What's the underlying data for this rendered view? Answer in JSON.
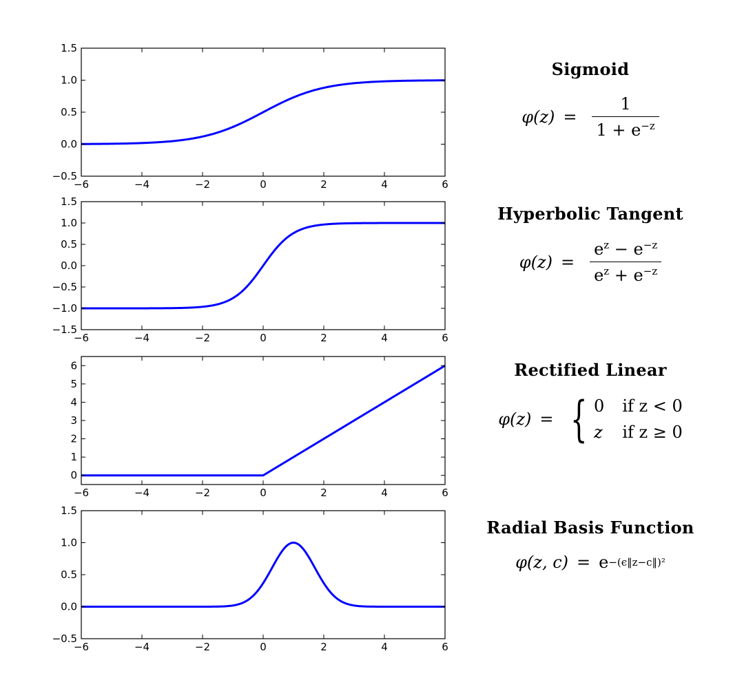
{
  "chart_data": [
    {
      "type": "line",
      "title": "Sigmoid",
      "formula": {
        "lhs": "φ(z)",
        "eq": "=",
        "numerator": "1",
        "denominator": "1 + e",
        "denominator_exp": "−z"
      },
      "function": "sigmoid",
      "xlim": [
        -6,
        6
      ],
      "ylim": [
        -0.5,
        1.5
      ],
      "xticks": [
        "−6",
        "−4",
        "−2",
        "0",
        "2",
        "4",
        "6"
      ],
      "xtick_values": [
        -6,
        -4,
        -2,
        0,
        2,
        4,
        6
      ],
      "yticks": [
        "−0.5",
        "0.0",
        "0.5",
        "1.0",
        "1.5"
      ],
      "ytick_values": [
        -0.5,
        0,
        0.5,
        1,
        1.5
      ],
      "x": [
        -6,
        -4,
        -2,
        -1,
        0,
        1,
        2,
        4,
        6
      ],
      "y": [
        0.0025,
        0.018,
        0.119,
        0.269,
        0.5,
        0.731,
        0.881,
        0.982,
        0.9975
      ],
      "color": "#0000ff",
      "grid": false
    },
    {
      "type": "line",
      "title": "Hyperbolic Tangent",
      "formula": {
        "lhs": "φ(z)",
        "eq": "=",
        "num_a": "e",
        "num_a_exp": "z",
        "num_op": " − e",
        "num_b_exp": "−z",
        "den_a": "e",
        "den_a_exp": "z",
        "den_op": " + e",
        "den_b_exp": "−z"
      },
      "function": "tanh",
      "xlim": [
        -6,
        6
      ],
      "ylim": [
        -1.5,
        1.5
      ],
      "xticks": [
        "−6",
        "−4",
        "−2",
        "0",
        "2",
        "4",
        "6"
      ],
      "xtick_values": [
        -6,
        -4,
        -2,
        0,
        2,
        4,
        6
      ],
      "yticks": [
        "−1.5",
        "−1.0",
        "−0.5",
        "0.0",
        "0.5",
        "1.0",
        "1.5"
      ],
      "ytick_values": [
        -1.5,
        -1,
        -0.5,
        0,
        0.5,
        1,
        1.5
      ],
      "x": [
        -6,
        -2,
        -1,
        0,
        1,
        2,
        6
      ],
      "y": [
        -1.0,
        -0.964,
        -0.762,
        0.0,
        0.762,
        0.964,
        1.0
      ],
      "color": "#0000ff",
      "grid": false
    },
    {
      "type": "line",
      "title": "Rectified Linear",
      "formula": {
        "lhs": "φ(z)",
        "eq": "=",
        "case1_val": "0",
        "case1_cond": "if z < 0",
        "case2_val": "z",
        "case2_cond": "if z ≥ 0"
      },
      "function": "relu",
      "xlim": [
        -6,
        6
      ],
      "ylim": [
        -0.5,
        6.5
      ],
      "xticks": [
        "−6",
        "−4",
        "−2",
        "0",
        "2",
        "4",
        "6"
      ],
      "xtick_values": [
        -6,
        -4,
        -2,
        0,
        2,
        4,
        6
      ],
      "yticks": [
        "0",
        "1",
        "2",
        "3",
        "4",
        "5",
        "6"
      ],
      "ytick_values": [
        0,
        1,
        2,
        3,
        4,
        5,
        6
      ],
      "x": [
        -6,
        0,
        6
      ],
      "y": [
        0,
        0,
        6
      ],
      "color": "#0000ff",
      "grid": false
    },
    {
      "type": "line",
      "title": "Radial Basis Function",
      "formula": {
        "lhs": "φ(z, c)",
        "eq": "=",
        "base": "e",
        "exp": "−(ϵ‖z−c‖)²"
      },
      "function": "rbf",
      "xlim": [
        -6,
        6
      ],
      "ylim": [
        -0.5,
        1.5
      ],
      "xticks": [
        "−6",
        "−4",
        "−2",
        "0",
        "2",
        "4",
        "6"
      ],
      "xtick_values": [
        -6,
        -4,
        -2,
        0,
        2,
        4,
        6
      ],
      "yticks": [
        "−0.5",
        "0.0",
        "0.5",
        "1.0",
        "1.5"
      ],
      "ytick_values": [
        -0.5,
        0,
        0.5,
        1,
        1.5
      ],
      "x": [
        -6,
        -1,
        0,
        0.5,
        1,
        1.5,
        2,
        3,
        6
      ],
      "y": [
        0,
        0.018,
        0.368,
        0.779,
        1.0,
        0.779,
        0.368,
        0.018,
        0
      ],
      "color": "#0000ff",
      "grid": false
    }
  ]
}
